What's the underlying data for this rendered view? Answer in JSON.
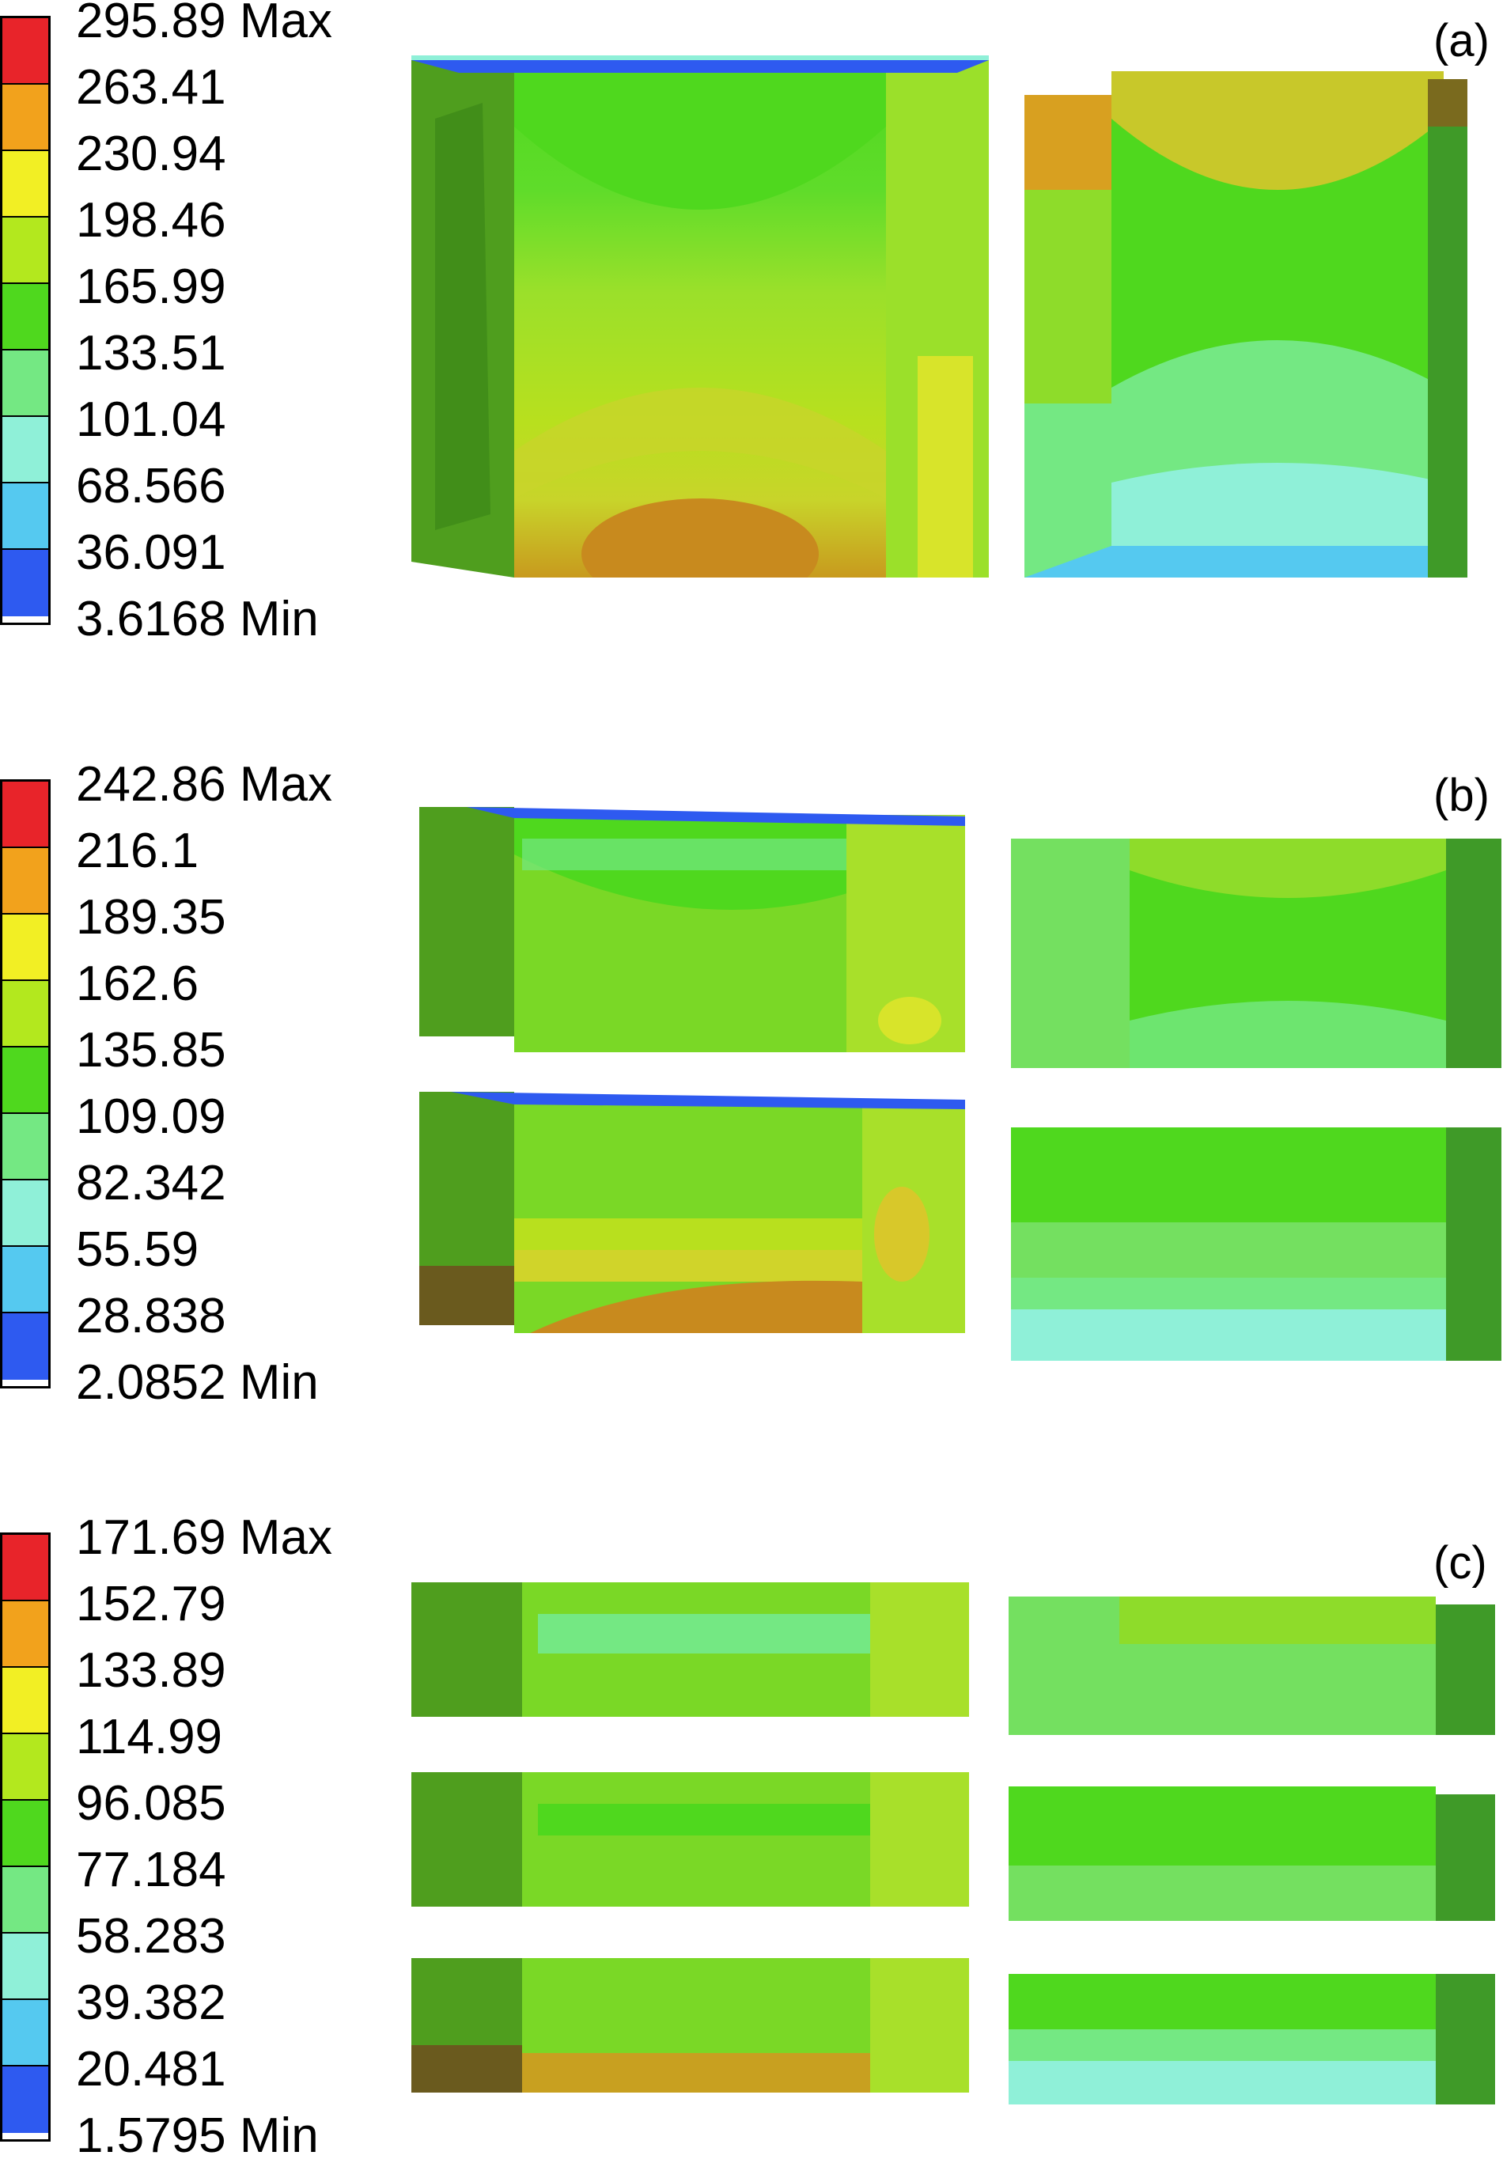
{
  "legends": [
    {
      "id": "a",
      "labels": [
        "295.89 Max",
        "263.41",
        "230.94",
        "198.46",
        "165.99",
        "133.51",
        "101.04",
        "68.566",
        "36.091",
        "3.6168 Min"
      ]
    },
    {
      "id": "b",
      "labels": [
        "242.86 Max",
        "216.1",
        "189.35",
        "162.6",
        "135.85",
        "109.09",
        "82.342",
        "55.59",
        "28.838",
        "2.0852 Min"
      ]
    },
    {
      "id": "c",
      "labels": [
        "171.69 Max",
        "152.79",
        "133.89",
        "114.99",
        "96.085",
        "77.184",
        "58.283",
        "39.382",
        "20.481",
        "1.5795 Min"
      ]
    }
  ],
  "band_colors": [
    "#e8242a",
    "#f2a21c",
    "#f2ef24",
    "#b3e81e",
    "#4fd81e",
    "#74e883",
    "#8ff0d8",
    "#55c9f0",
    "#2e5af0"
  ],
  "panel_labels": {
    "a": "(a)",
    "b": "(b)",
    "c": "(c)"
  }
}
